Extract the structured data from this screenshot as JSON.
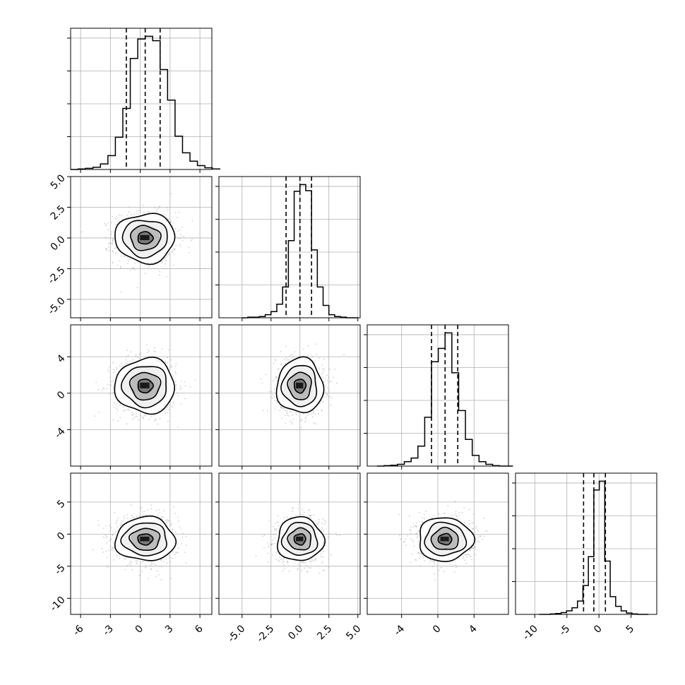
{
  "chart_data": {
    "type": "corner",
    "parameters": [
      {
        "xlim": [
          -7,
          7.2
        ],
        "ticks": [
          -6,
          -3,
          0,
          3,
          6
        ],
        "tick_labels": [
          "-6",
          "-3",
          "0",
          "3",
          "6"
        ],
        "quantiles": [
          -1.4,
          0.5,
          2.0
        ],
        "mode": 0.5,
        "sigma": 1.5,
        "hist": [
          0,
          1,
          2,
          4,
          10,
          25,
          58,
          110,
          200,
          235,
          240,
          232,
          180,
          125,
          60,
          30,
          15,
          7,
          3,
          1
        ]
      },
      {
        "xlim": [
          -7,
          5.2
        ],
        "ticks": [
          -5.0,
          -2.5,
          0.0,
          2.5,
          5.0
        ],
        "tick_labels": [
          "-5.0",
          "-2.5",
          "0.0",
          "2.5",
          "5.0"
        ],
        "quantiles": [
          -1.2,
          0.0,
          1.0
        ],
        "mode": 0.0,
        "sigma": 1.0,
        "hist": [
          0,
          1,
          1,
          2,
          5,
          10,
          22,
          50,
          125,
          205,
          216,
          206,
          110,
          50,
          20,
          5,
          2,
          1,
          0,
          0
        ]
      },
      {
        "xlim": [
          -7.8,
          7.8
        ],
        "ticks": [
          -4,
          0,
          4
        ],
        "tick_labels": [
          "-4",
          "0",
          "4"
        ],
        "quantiles": [
          -0.7,
          0.8,
          2.2
        ],
        "mode": 0.8,
        "sigma": 1.5,
        "hist": [
          0,
          1,
          2,
          4,
          10,
          18,
          45,
          110,
          235,
          265,
          300,
          210,
          125,
          60,
          24,
          10,
          4,
          1,
          0,
          0
        ]
      },
      {
        "xlim": [
          -13,
          9
        ],
        "ticks": [
          -10,
          -5,
          0,
          5
        ],
        "tick_labels": [
          "-10",
          "-5",
          "0",
          "5"
        ],
        "y_tick_labels": [
          "-10",
          "-5",
          "0",
          "5"
        ],
        "quantiles": [
          -2.4,
          -0.8,
          1.0
        ],
        "mode": -0.8,
        "sigma": 1.7,
        "hist": [
          0,
          0,
          1,
          2,
          4,
          8,
          15,
          30,
          65,
          130,
          280,
          300,
          120,
          40,
          18,
          8,
          3,
          1,
          0,
          0
        ]
      }
    ],
    "row_ylims": [
      null,
      [
        -6.5,
        5.0
      ],
      [
        -8,
        7.5
      ],
      [
        -12.5,
        9.5
      ]
    ],
    "row_y_ticks": [
      null,
      [
        5.0,
        2.5,
        0.0,
        -2.5,
        -5.0
      ],
      [
        4,
        0,
        -4
      ],
      [
        5,
        0,
        -5,
        -10
      ]
    ],
    "row_y_tick_labels": [
      null,
      [
        "5.0",
        "2.5",
        "0.0",
        "-2.5",
        "-5.0"
      ],
      [
        "4",
        "0",
        "-4"
      ],
      [
        "5",
        "0",
        "-5",
        "-10"
      ]
    ],
    "contour_levels": [
      0.5,
      1.0,
      1.5,
      2.0
    ],
    "grid": true,
    "legend": "none"
  }
}
